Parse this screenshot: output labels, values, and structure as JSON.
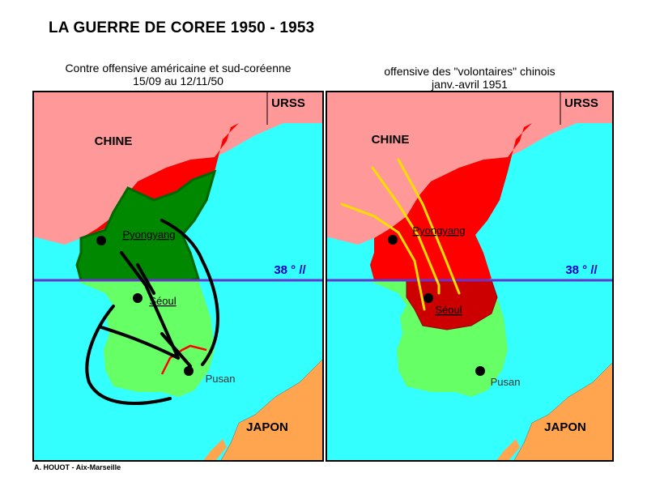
{
  "title": "LA GUERRE DE COREE 1950 - 1953",
  "credit": "A. HOUOT - Aix-Marseille",
  "colors": {
    "sea": "#33ffff",
    "china": "#ff9999",
    "north_korea": "#ff0000",
    "reconquered": "#008800",
    "south_korea": "#66ff66",
    "chinese_gain": "#cc0000",
    "japan": "#ffa54f",
    "parallel": "#6633cc",
    "parallel_label": "#0000cc",
    "offensive_arrow": "#ffdd00",
    "front_line": "#ff0000"
  },
  "maps": [
    {
      "subtitle_line1": "Contre offensive américaine et sud-coréenne",
      "subtitle_line2": "15/09 au 12/11/50",
      "labels": {
        "urss": "URSS",
        "chine": "CHINE",
        "pyongyang": "Pyongyang",
        "seoul": "Séoul",
        "pusan": "Pusan",
        "japon": "JAPON",
        "parallel": "38 ° //"
      }
    },
    {
      "subtitle_line1": "offensive des \"volontaires\" chinois",
      "subtitle_line2": "janv.-avril 1951",
      "labels": {
        "urss": "URSS",
        "chine": "CHINE",
        "pyongyang": "Pyongyang",
        "seoul": "Séoul",
        "pusan": "Pusan",
        "japon": "JAPON",
        "parallel": "38 ° //"
      }
    }
  ]
}
